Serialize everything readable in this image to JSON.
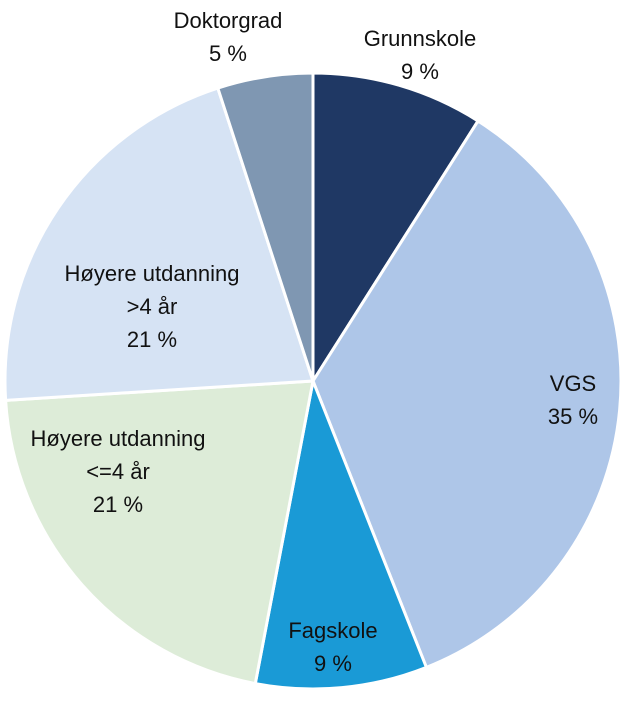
{
  "chart_data": {
    "type": "pie",
    "categories": [
      [
        "Grunnskole"
      ],
      [
        "VGS"
      ],
      [
        "Fagskole"
      ],
      [
        "Høyere utdanning",
        "<=4 år"
      ],
      [
        "Høyere utdanning",
        ">4 år"
      ],
      [
        "Doktorgrad"
      ]
    ],
    "values": [
      9,
      35,
      9,
      21,
      21,
      5
    ],
    "value_labels": [
      "9 %",
      "35 %",
      "9 %",
      "21 %",
      "21 %",
      "5 %"
    ],
    "colors": [
      "#1f3864",
      "#aec6e8",
      "#1a9ad6",
      "#ddecd8",
      "#d6e3f4",
      "#7f97b2"
    ]
  }
}
